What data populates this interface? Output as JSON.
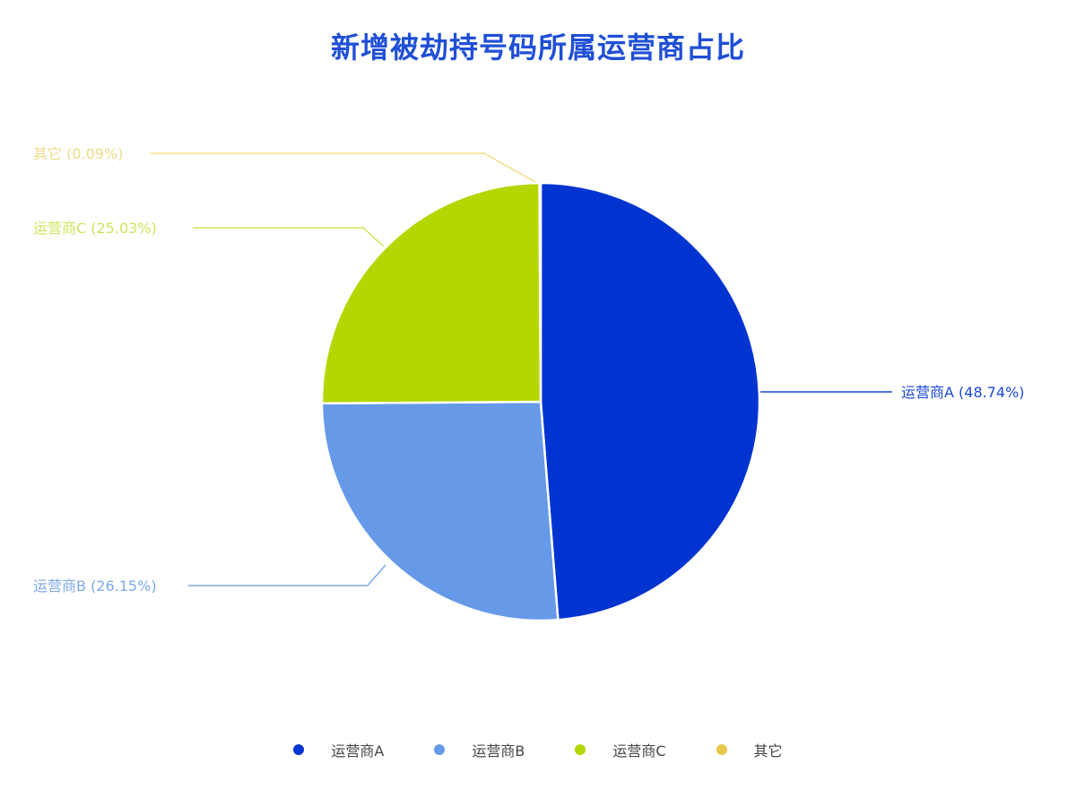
{
  "chart_data": {
    "type": "pie",
    "title": "新增被劫持号码所属运营商占比",
    "slices": [
      {
        "name": "运营商A",
        "value": 48.74,
        "label": "运营商A (48.74%)",
        "color": "#0034d1"
      },
      {
        "name": "运营商B",
        "value": 26.15,
        "label": "运营商B (26.15%)",
        "color": "#6699e8"
      },
      {
        "name": "运营商C",
        "value": 25.03,
        "label": "运营商C (25.03%)",
        "color": "#b5d600"
      },
      {
        "name": "其它",
        "value": 0.09,
        "label": "其它 (0.09%)",
        "color": "#e8c84a"
      }
    ],
    "start_angle": "12 o'clock",
    "direction": "clockwise",
    "legend_position": "bottom"
  }
}
